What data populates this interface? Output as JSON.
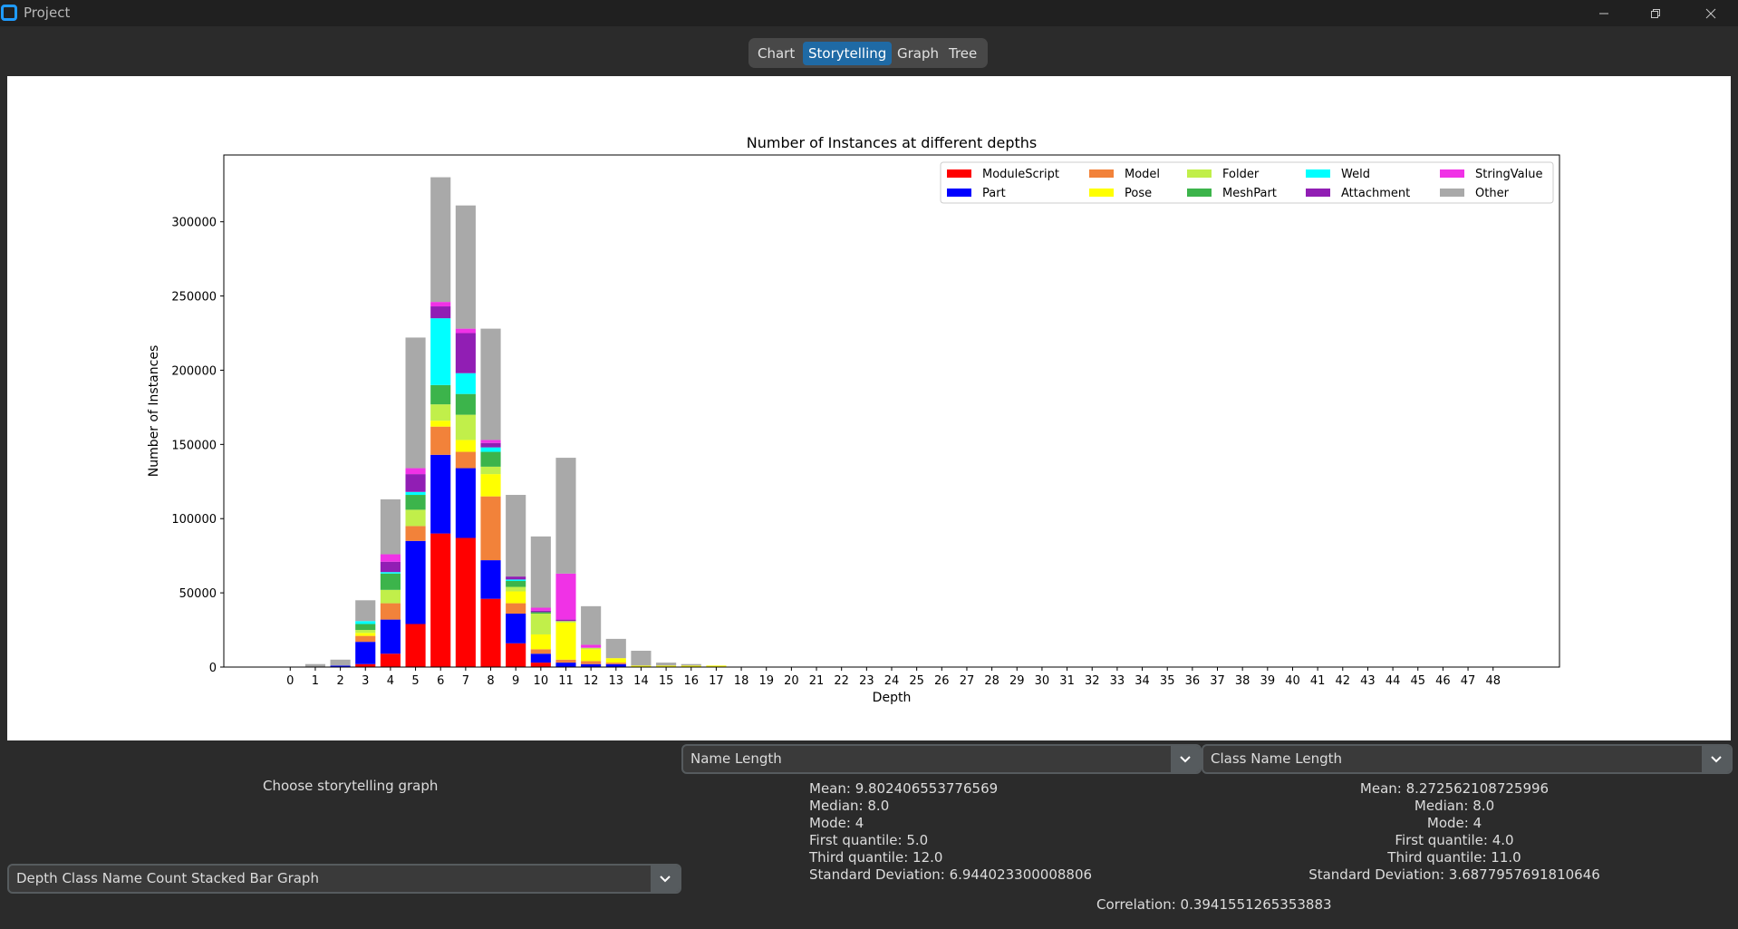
{
  "window": {
    "title": "Project"
  },
  "tabs": [
    {
      "label": "Chart"
    },
    {
      "label": "Storytelling"
    },
    {
      "label": "Graph"
    },
    {
      "label": "Tree"
    }
  ],
  "active_tab": "Storytelling",
  "controls": {
    "choose_label": "Choose storytelling graph",
    "graph_select_value": "Depth Class Name Count Stacked Bar Graph",
    "left_select_value": "Name Length",
    "right_select_value": "Class Name Length"
  },
  "stats_left": {
    "mean": "Mean: 9.802406553776569",
    "median": "Median: 8.0",
    "mode": "Mode: 4",
    "q1": "First quantile: 5.0",
    "q3": "Third quantile: 12.0",
    "std": "Standard Deviation: 6.944023300008806"
  },
  "stats_right": {
    "mean": "Mean: 8.272562108725996",
    "median": "Median: 8.0",
    "mode": "Mode: 4",
    "q1": "First quantile: 4.0",
    "q3": "Third quantile: 11.0",
    "std": "Standard Deviation: 3.6877957691810646"
  },
  "correlation": "Correlation: 0.3941551265353883",
  "chart_data": {
    "type": "bar",
    "stacked": true,
    "title": "Number of Instances at different depths",
    "xlabel": "Depth",
    "ylabel": "Number of Instances",
    "ylim": [
      0,
      345000
    ],
    "yticks": [
      0,
      50000,
      100000,
      150000,
      200000,
      250000,
      300000
    ],
    "legend_position": "top-right",
    "categories": [
      "0",
      "1",
      "2",
      "3",
      "4",
      "5",
      "6",
      "7",
      "8",
      "9",
      "10",
      "11",
      "12",
      "13",
      "14",
      "15",
      "16",
      "17",
      "18",
      "19",
      "20",
      "21",
      "22",
      "23",
      "24",
      "25",
      "26",
      "27",
      "28",
      "29",
      "30",
      "31",
      "32",
      "33",
      "34",
      "35",
      "36",
      "37",
      "38",
      "39",
      "40",
      "41",
      "42",
      "43",
      "44",
      "45",
      "46",
      "47",
      "48"
    ],
    "series": [
      {
        "name": "ModuleScript",
        "color": "#ff0000",
        "values": [
          0,
          0,
          0,
          2000,
          9000,
          29000,
          90000,
          87000,
          46000,
          16000,
          3000,
          0,
          0,
          0,
          0,
          0,
          0,
          0,
          0,
          0,
          0,
          0,
          0,
          0,
          0,
          0,
          0,
          0,
          0,
          0,
          0,
          0,
          0,
          0,
          0,
          0,
          0,
          0,
          0,
          0,
          0,
          0,
          0,
          0,
          0,
          0,
          0,
          0,
          0
        ]
      },
      {
        "name": "Part",
        "color": "#0000ff",
        "values": [
          0,
          0,
          1000,
          15000,
          23000,
          56000,
          53000,
          47000,
          26000,
          20000,
          6000,
          3000,
          2000,
          2000,
          0,
          0,
          0,
          0,
          0,
          0,
          0,
          0,
          0,
          0,
          0,
          0,
          0,
          0,
          0,
          0,
          0,
          0,
          0,
          0,
          0,
          0,
          0,
          0,
          0,
          0,
          0,
          0,
          0,
          0,
          0,
          0,
          0,
          0,
          0
        ]
      },
      {
        "name": "Model",
        "color": "#f2823a",
        "values": [
          0,
          0,
          0,
          4000,
          11000,
          10000,
          19000,
          11000,
          43000,
          7000,
          3000,
          2000,
          2000,
          1000,
          0,
          0,
          0,
          0,
          0,
          0,
          0,
          0,
          0,
          0,
          0,
          0,
          0,
          0,
          0,
          0,
          0,
          0,
          0,
          0,
          0,
          0,
          0,
          0,
          0,
          0,
          0,
          0,
          0,
          0,
          0,
          0,
          0,
          0,
          0
        ]
      },
      {
        "name": "Pose",
        "color": "#ffff00",
        "values": [
          0,
          0,
          0,
          2000,
          0,
          0,
          4000,
          8000,
          15000,
          8000,
          10000,
          25000,
          8000,
          3000,
          1000,
          1000,
          1000,
          1000,
          0,
          0,
          0,
          0,
          0,
          0,
          0,
          0,
          0,
          0,
          0,
          0,
          0,
          0,
          0,
          0,
          0,
          0,
          0,
          0,
          0,
          0,
          0,
          0,
          0,
          0,
          0,
          0,
          0,
          0,
          0
        ]
      },
      {
        "name": "Folder",
        "color": "#c1ef4a",
        "values": [
          0,
          0,
          0,
          2000,
          9000,
          11000,
          11000,
          17000,
          5000,
          3000,
          14000,
          1000,
          1000,
          0,
          0,
          0,
          0,
          0,
          0,
          0,
          0,
          0,
          0,
          0,
          0,
          0,
          0,
          0,
          0,
          0,
          0,
          0,
          0,
          0,
          0,
          0,
          0,
          0,
          0,
          0,
          0,
          0,
          0,
          0,
          0,
          0,
          0,
          0,
          0
        ]
      },
      {
        "name": "MeshPart",
        "color": "#3cb44b",
        "values": [
          0,
          0,
          0,
          4000,
          11000,
          10000,
          13000,
          14000,
          10000,
          4000,
          1000,
          0,
          0,
          0,
          0,
          0,
          0,
          0,
          0,
          0,
          0,
          0,
          0,
          0,
          0,
          0,
          0,
          0,
          0,
          0,
          0,
          0,
          0,
          0,
          0,
          0,
          0,
          0,
          0,
          0,
          0,
          0,
          0,
          0,
          0,
          0,
          0,
          0,
          0
        ]
      },
      {
        "name": "Weld",
        "color": "#00ffff",
        "values": [
          0,
          0,
          0,
          2000,
          1000,
          2000,
          45000,
          14000,
          3000,
          1000,
          0,
          0,
          0,
          0,
          0,
          0,
          0,
          0,
          0,
          0,
          0,
          0,
          0,
          0,
          0,
          0,
          0,
          0,
          0,
          0,
          0,
          0,
          0,
          0,
          0,
          0,
          0,
          0,
          0,
          0,
          0,
          0,
          0,
          0,
          0,
          0,
          0,
          0,
          0
        ]
      },
      {
        "name": "Attachment",
        "color": "#911eb4",
        "values": [
          0,
          0,
          0,
          0,
          7000,
          12000,
          8000,
          27000,
          3000,
          2000,
          1000,
          1000,
          0,
          0,
          0,
          0,
          0,
          0,
          0,
          0,
          0,
          0,
          0,
          0,
          0,
          0,
          0,
          0,
          0,
          0,
          0,
          0,
          0,
          0,
          0,
          0,
          0,
          0,
          0,
          0,
          0,
          0,
          0,
          0,
          0,
          0,
          0,
          0,
          0
        ]
      },
      {
        "name": "StringValue",
        "color": "#f032e6",
        "values": [
          0,
          0,
          0,
          0,
          5000,
          4000,
          3000,
          3000,
          2000,
          0,
          2000,
          31000,
          2000,
          0,
          0,
          0,
          0,
          0,
          0,
          0,
          0,
          0,
          0,
          0,
          0,
          0,
          0,
          0,
          0,
          0,
          0,
          0,
          0,
          0,
          0,
          0,
          0,
          0,
          0,
          0,
          0,
          0,
          0,
          0,
          0,
          0,
          0,
          0,
          0
        ]
      },
      {
        "name": "Other",
        "color": "#a9a9a9",
        "values": [
          0,
          2000,
          4000,
          14000,
          37000,
          88000,
          84000,
          83000,
          75000,
          55000,
          48000,
          78000,
          26000,
          13000,
          10000,
          2000,
          1000,
          0,
          0,
          0,
          0,
          0,
          0,
          0,
          0,
          0,
          0,
          0,
          0,
          0,
          0,
          0,
          0,
          0,
          0,
          0,
          0,
          0,
          0,
          0,
          0,
          0,
          0,
          0,
          0,
          0,
          0,
          0,
          0
        ]
      }
    ]
  }
}
